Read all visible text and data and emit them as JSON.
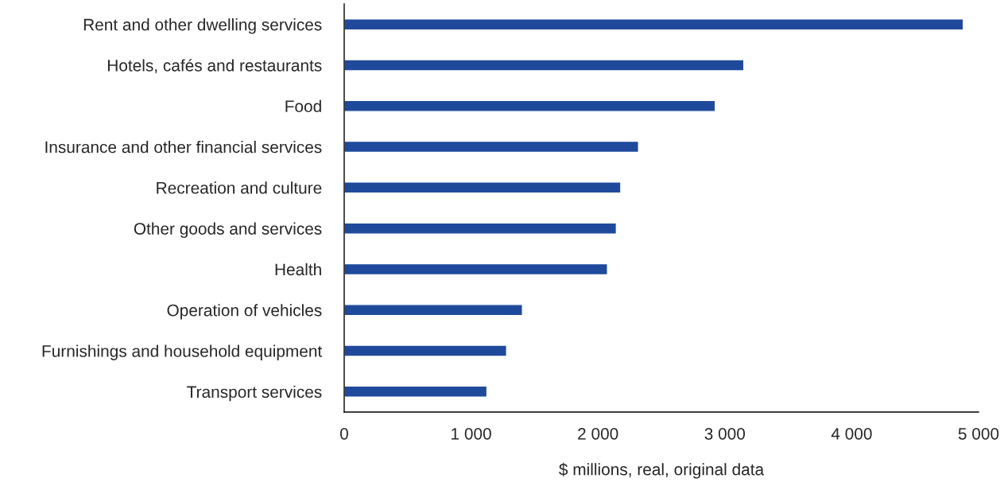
{
  "chart_data": {
    "type": "bar",
    "orientation": "horizontal",
    "xlabel": "$ millions, real, original data",
    "categories": [
      "Rent and other dwelling services",
      "Hotels, cafés and restaurants",
      "Food",
      "Insurance and other financial services",
      "Recreation and culture",
      "Other goods and services",
      "Health",
      "Operation of vehicles",
      "Furnishings and household equipment",
      "Transport services"
    ],
    "values": [
      4880,
      3150,
      2925,
      2320,
      2180,
      2145,
      2075,
      1405,
      1280,
      1125
    ],
    "color": "#1f4a9c",
    "xlim": [
      0,
      5000
    ],
    "xticks": [
      {
        "value": 0,
        "label": "0"
      },
      {
        "value": 1000,
        "label": "1 000"
      },
      {
        "value": 2000,
        "label": "2 000"
      },
      {
        "value": 3000,
        "label": "3 000"
      },
      {
        "value": 4000,
        "label": "4 000"
      },
      {
        "value": 5000,
        "label": "5 000"
      }
    ],
    "grid": false,
    "legend": false
  }
}
